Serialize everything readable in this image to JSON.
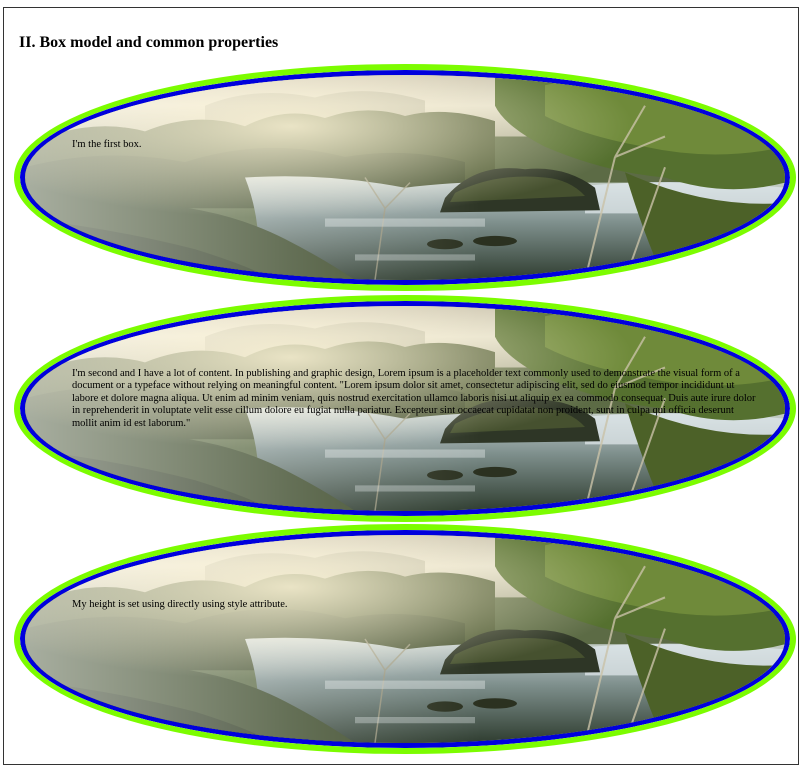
{
  "page": {
    "heading": "II. Box model and common properties"
  },
  "boxes": [
    {
      "text": "I'm the first box."
    },
    {
      "text": "I'm second and I have a lot of content. In publishing and graphic design, Lorem ipsum is a placeholder text commonly used to demonstrate the visual form of a document or a typeface without relying on meaningful content. \"Lorem ipsum dolor sit amet, consectetur adipiscing elit, sed do eiusmod tempor incididunt ut labore et dolore magna aliqua. Ut enim ad minim veniam, quis nostrud exercitation ullamco laboris nisi ut aliquip ex ea commodo consequat. Duis aute irure dolor in reprehenderit in voluptate velit esse cillum dolore eu fugiat nulla pariatur. Excepteur sint occaecat cupidatat non proident, sunt in culpa qui officia deserunt mollit anim id est laborum.\""
    },
    {
      "text": "My height is set using directly using style attribute."
    }
  ],
  "colors": {
    "outer_border": "#7cfc00",
    "inner_border": "#0000dd"
  },
  "background_image": "lake-landscape-photo"
}
